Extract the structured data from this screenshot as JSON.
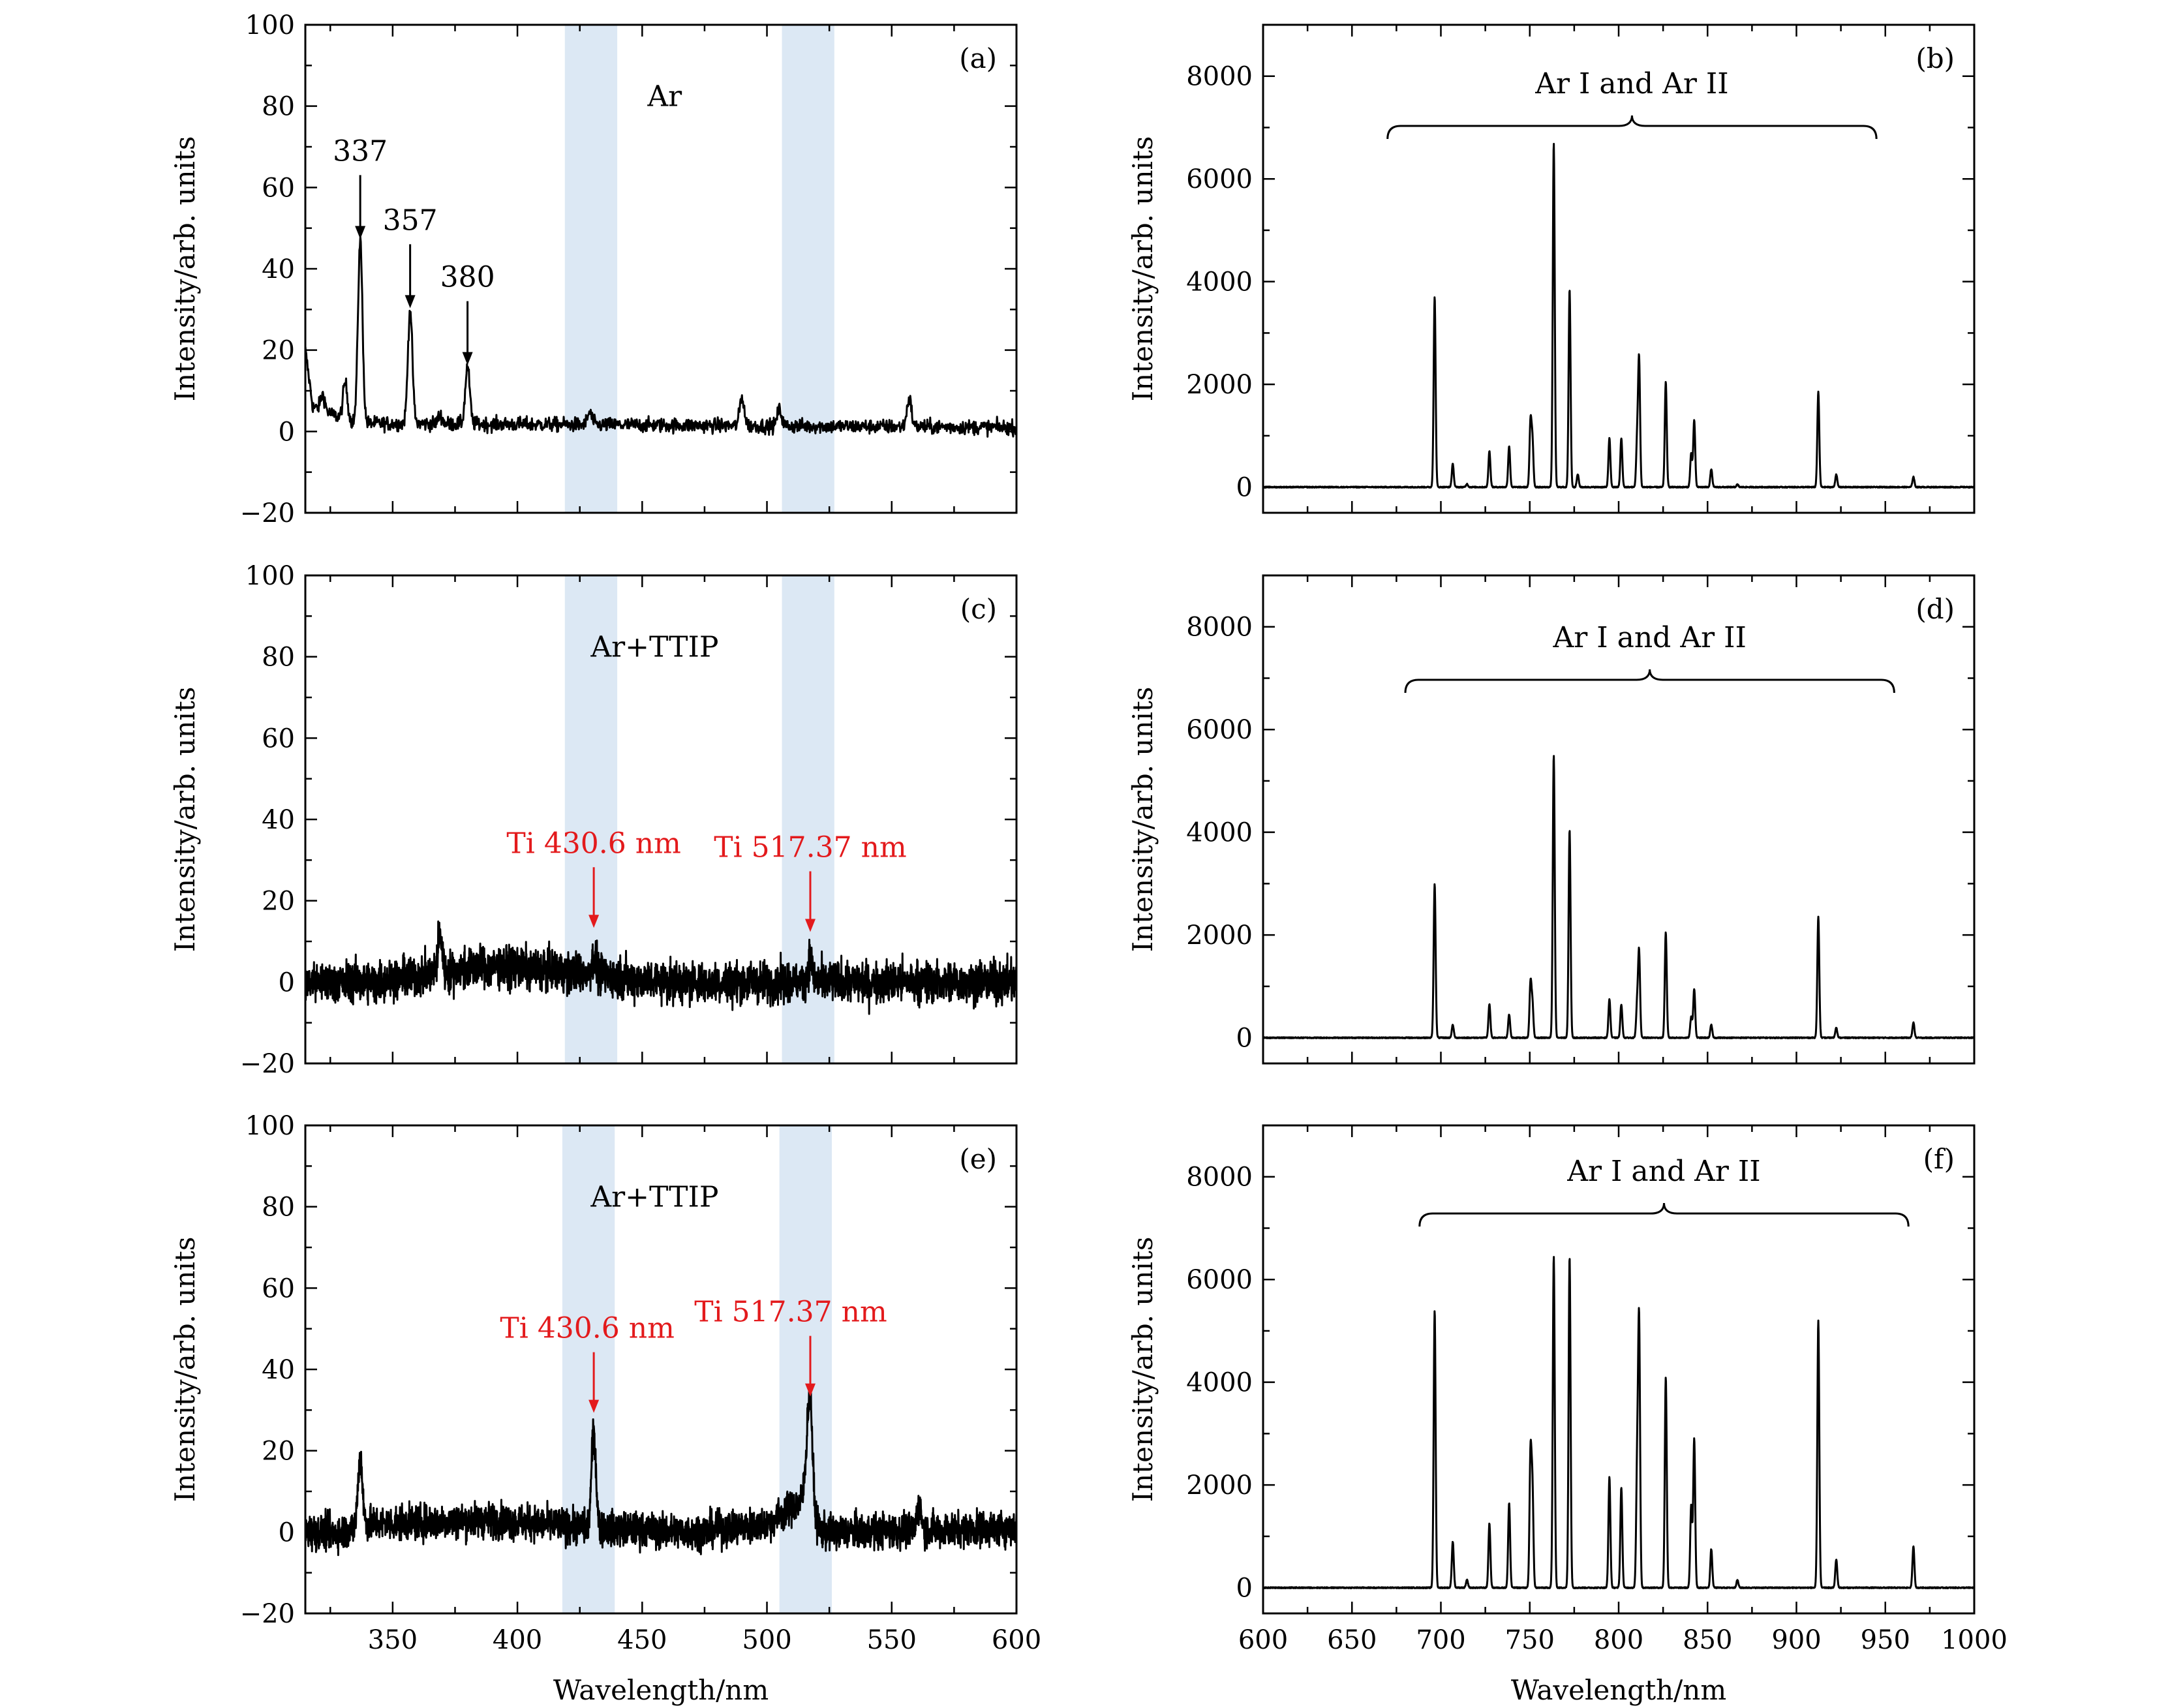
{
  "figure": {
    "xlabel": "Wavelength/nm",
    "ylabel": "Intensity/arb. units"
  },
  "colors": {
    "line": "#000000",
    "annotation": "#e31a1c",
    "band": "#dce8f4"
  },
  "chart_data": [
    {
      "id": "a",
      "type": "line",
      "panel_label": "(a)",
      "title": "Ar",
      "xlim": [
        315,
        600
      ],
      "ylim": [
        -20,
        100
      ],
      "xticks": [
        350,
        400,
        450,
        500,
        550,
        600
      ],
      "yticks": [
        -20,
        0,
        20,
        40,
        60,
        80,
        100
      ],
      "ytick_labels": [
        "−20",
        "0",
        "20",
        "40",
        "60",
        "80",
        "100"
      ],
      "xtick_labels_shown": false,
      "noise_amplitude": 2.5,
      "baseline": [
        [
          315,
          20
        ],
        [
          318,
          6
        ],
        [
          335,
          2
        ],
        [
          600,
          1
        ]
      ],
      "peaks": [
        [
          322,
          4
        ],
        [
          331,
          9
        ],
        [
          337,
          45
        ],
        [
          357,
          28
        ],
        [
          369,
          2
        ],
        [
          380,
          14
        ],
        [
          429,
          3
        ],
        [
          490,
          7
        ],
        [
          505,
          4
        ],
        [
          557,
          7
        ]
      ],
      "shaded_bands": [
        [
          419,
          440
        ],
        [
          506,
          527
        ]
      ],
      "annotations": [
        {
          "text": "337",
          "x": 337,
          "y": 47,
          "color": "black"
        },
        {
          "text": "357",
          "x": 357,
          "y": 30,
          "color": "black"
        },
        {
          "text": "380",
          "x": 380,
          "y": 16,
          "color": "black"
        }
      ]
    },
    {
      "id": "b",
      "type": "line",
      "panel_label": "(b)",
      "title": "Ar I and Ar II",
      "xlim": [
        600,
        1000
      ],
      "ylim": [
        -500,
        9000
      ],
      "xticks": [
        600,
        650,
        700,
        750,
        800,
        850,
        900,
        950,
        1000
      ],
      "yticks": [
        0,
        2000,
        4000,
        6000,
        8000
      ],
      "ytick_labels": [
        "0",
        "2000",
        "4000",
        "6000",
        "8000"
      ],
      "xtick_labels_shown": false,
      "brace_range": [
        670,
        945
      ],
      "peaks": [
        [
          696.5,
          3700
        ],
        [
          706.7,
          450
        ],
        [
          714.7,
          60
        ],
        [
          727.3,
          700
        ],
        [
          738.4,
          800
        ],
        [
          750.4,
          1250
        ],
        [
          751.5,
          900
        ],
        [
          763.5,
          6700
        ],
        [
          772.4,
          3850
        ],
        [
          777,
          250
        ],
        [
          794.8,
          950
        ],
        [
          801.5,
          950
        ],
        [
          811.5,
          2450
        ],
        [
          810.4,
          900
        ],
        [
          826.5,
          2050
        ],
        [
          840.8,
          650
        ],
        [
          842.5,
          1300
        ],
        [
          852.1,
          350
        ],
        [
          866.8,
          50
        ],
        [
          912.3,
          1850
        ],
        [
          922.4,
          250
        ],
        [
          965.8,
          200
        ]
      ]
    },
    {
      "id": "c",
      "type": "line",
      "panel_label": "(c)",
      "title": "Ar+TTIP",
      "xlim": [
        315,
        600
      ],
      "ylim": [
        -20,
        100
      ],
      "xticks": [
        350,
        400,
        450,
        500,
        550,
        600
      ],
      "yticks": [
        -20,
        0,
        20,
        40,
        60,
        80,
        100
      ],
      "ytick_labels": [
        "−20",
        "0",
        "20",
        "40",
        "60",
        "80",
        "100"
      ],
      "xtick_labels_shown": false,
      "noise_amplitude": 7,
      "baseline": [
        [
          315,
          0
        ],
        [
          340,
          0
        ],
        [
          390,
          4
        ],
        [
          430,
          2
        ],
        [
          460,
          0
        ],
        [
          600,
          0
        ]
      ],
      "peaks": [
        [
          369,
          9
        ],
        [
          430.6,
          4
        ],
        [
          517.37,
          6
        ]
      ],
      "shaded_bands": [
        [
          419,
          440
        ],
        [
          506,
          527
        ]
      ],
      "annotations": [
        {
          "text": "Ti 430.6 nm",
          "x": 430.6,
          "y": 13,
          "color": "red"
        },
        {
          "text": "Ti 517.37 nm",
          "x": 517.37,
          "y": 12,
          "color": "red"
        }
      ]
    },
    {
      "id": "d",
      "type": "line",
      "panel_label": "(d)",
      "title": "Ar I and Ar II",
      "xlim": [
        600,
        1000
      ],
      "ylim": [
        -500,
        9000
      ],
      "xticks": [
        600,
        650,
        700,
        750,
        800,
        850,
        900,
        950,
        1000
      ],
      "yticks": [
        0,
        2000,
        4000,
        6000,
        8000
      ],
      "ytick_labels": [
        "0",
        "2000",
        "4000",
        "6000",
        "8000"
      ],
      "xtick_labels_shown": false,
      "brace_range": [
        680,
        955
      ],
      "peaks": [
        [
          696.5,
          3000
        ],
        [
          706.7,
          250
        ],
        [
          727.3,
          650
        ],
        [
          738.4,
          450
        ],
        [
          750.4,
          1050
        ],
        [
          751.5,
          650
        ],
        [
          763.5,
          5500
        ],
        [
          772.4,
          4050
        ],
        [
          794.8,
          750
        ],
        [
          801.5,
          650
        ],
        [
          810.4,
          650
        ],
        [
          811.5,
          1650
        ],
        [
          826.5,
          2050
        ],
        [
          840.8,
          400
        ],
        [
          842.5,
          950
        ],
        [
          852.1,
          250
        ],
        [
          912.3,
          2350
        ],
        [
          922.4,
          200
        ],
        [
          965.8,
          300
        ]
      ]
    },
    {
      "id": "e",
      "type": "line",
      "panel_label": "(e)",
      "title": "Ar+TTIP",
      "xlim": [
        315,
        600
      ],
      "ylim": [
        -20,
        100
      ],
      "xticks": [
        350,
        400,
        450,
        500,
        550,
        600
      ],
      "yticks": [
        -20,
        0,
        20,
        40,
        60,
        80,
        100
      ],
      "ytick_labels": [
        "−20",
        "0",
        "20",
        "40",
        "60",
        "80",
        "100"
      ],
      "xtick_labels": [
        "350",
        "400",
        "450",
        "500",
        "550",
        "600"
      ],
      "xtick_labels_shown": true,
      "noise_amplitude": 6,
      "baseline": [
        [
          315,
          0
        ],
        [
          330,
          0
        ],
        [
          340,
          2
        ],
        [
          390,
          3
        ],
        [
          430,
          1
        ],
        [
          470,
          0
        ],
        [
          500,
          2
        ],
        [
          515,
          8
        ],
        [
          522,
          0
        ],
        [
          600,
          1
        ]
      ],
      "peaks": [
        [
          337,
          17
        ],
        [
          430.6,
          24
        ],
        [
          516,
          9
        ],
        [
          517.37,
          26
        ],
        [
          561,
          6
        ]
      ],
      "shaded_bands": [
        [
          418,
          439
        ],
        [
          505,
          526
        ]
      ],
      "annotations": [
        {
          "text": "Ti 430.6 nm",
          "x": 430.6,
          "y": 29,
          "color": "red"
        },
        {
          "text": "Ti 517.37 nm",
          "x": 517.37,
          "y": 33,
          "color": "red"
        }
      ]
    },
    {
      "id": "f",
      "type": "line",
      "panel_label": "(f)",
      "title": "Ar I and Ar II",
      "xlim": [
        600,
        1000
      ],
      "ylim": [
        -500,
        9000
      ],
      "xticks": [
        600,
        650,
        700,
        750,
        800,
        850,
        900,
        950,
        1000
      ],
      "yticks": [
        0,
        2000,
        4000,
        6000,
        8000
      ],
      "ytick_labels": [
        "0",
        "2000",
        "4000",
        "6000",
        "8000"
      ],
      "xtick_labels": [
        "600",
        "650",
        "700",
        "750",
        "800",
        "850",
        "900",
        "950",
        "1000"
      ],
      "xtick_labels_shown": true,
      "brace_range": [
        688,
        963
      ],
      "peaks": [
        [
          696.5,
          5400
        ],
        [
          706.7,
          900
        ],
        [
          714.7,
          150
        ],
        [
          727.3,
          1250
        ],
        [
          738.4,
          1650
        ],
        [
          750.4,
          2550
        ],
        [
          751.5,
          1900
        ],
        [
          763.5,
          6450
        ],
        [
          772.4,
          6450
        ],
        [
          794.8,
          2150
        ],
        [
          801.5,
          1950
        ],
        [
          810.4,
          2300
        ],
        [
          811.5,
          5100
        ],
        [
          826.5,
          4100
        ],
        [
          840.8,
          1600
        ],
        [
          842.5,
          2900
        ],
        [
          852.1,
          750
        ],
        [
          866.8,
          150
        ],
        [
          912.3,
          5200
        ],
        [
          922.4,
          550
        ],
        [
          965.8,
          800
        ]
      ]
    }
  ]
}
